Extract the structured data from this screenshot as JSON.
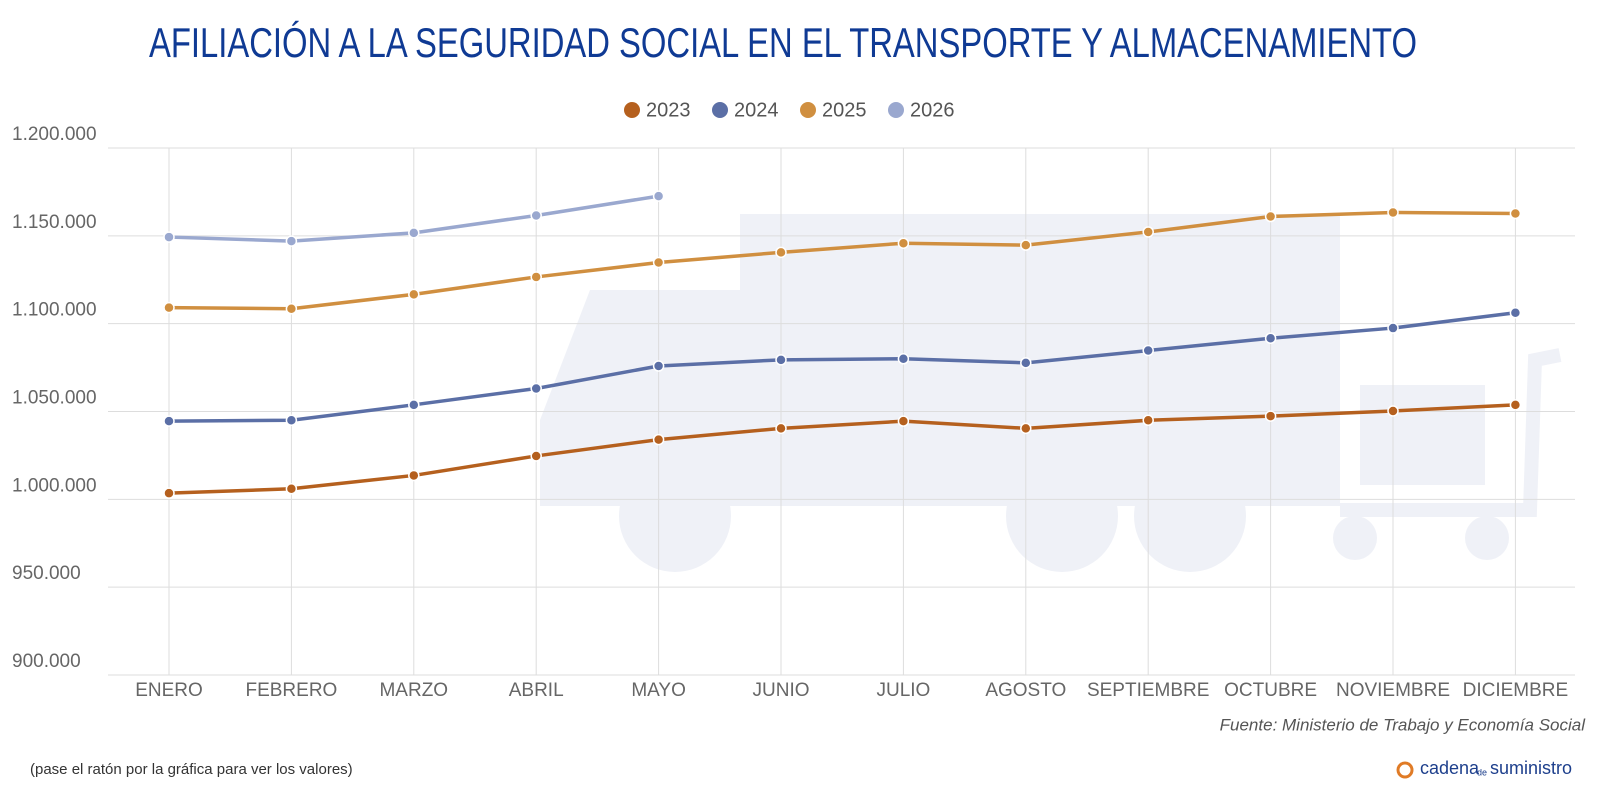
{
  "chart_data": {
    "type": "line",
    "title": "AFILIACIÓN A LA SEGURIDAD SOCIAL EN EL TRANSPORTE Y ALMACENAMIENTO",
    "categories": [
      "ENERO",
      "FEBRERO",
      "MARZO",
      "ABRIL",
      "MAYO",
      "JUNIO",
      "JULIO",
      "AGOSTO",
      "SEPTIEMBRE",
      "OCTUBRE",
      "NOVIEMBRE",
      "DICIEMBRE"
    ],
    "series": [
      {
        "name": "2023",
        "color": "#b5601e",
        "values": [
          1003500,
          1006000,
          1013600,
          1024700,
          1034000,
          1040400,
          1044500,
          1040400,
          1045000,
          1047400,
          1050300,
          1053800
        ]
      },
      {
        "name": "2024",
        "color": "#5b6fa6",
        "values": [
          1044500,
          1045000,
          1053800,
          1063100,
          1075900,
          1079400,
          1080000,
          1077700,
          1084700,
          1091700,
          1097500,
          1106200
        ]
      },
      {
        "name": "2025",
        "color": "#d08f40",
        "values": [
          1109100,
          1108500,
          1116700,
          1126600,
          1134800,
          1140600,
          1145800,
          1144700,
          1152200,
          1161000,
          1163300,
          1162700
        ]
      },
      {
        "name": "2026",
        "color": "#9aa8cf",
        "values": [
          1149300,
          1147000,
          1151700,
          1161600,
          1172600,
          null,
          null,
          null,
          null,
          null,
          null,
          null
        ]
      }
    ],
    "ylim": [
      900000,
      1200000
    ],
    "yticks": [
      {
        "value": 900000,
        "label": "900.000"
      },
      {
        "value": 950000,
        "label": "950.000"
      },
      {
        "value": 1000000,
        "label": "1.000.000"
      },
      {
        "value": 1050000,
        "label": "1.050.000"
      },
      {
        "value": 1100000,
        "label": "1.100.000"
      },
      {
        "value": 1150000,
        "label": "1.150.000"
      },
      {
        "value": 1200000,
        "label": "1.200.000"
      }
    ],
    "grid": true,
    "legend": "top",
    "source": "Fuente: Ministerio de Trabajo y Economía Social",
    "note": "(pase el ratón por la gráfica para ver los valores)",
    "logo": {
      "first": "cadena",
      "middle": "de",
      "last": "suministro"
    }
  }
}
